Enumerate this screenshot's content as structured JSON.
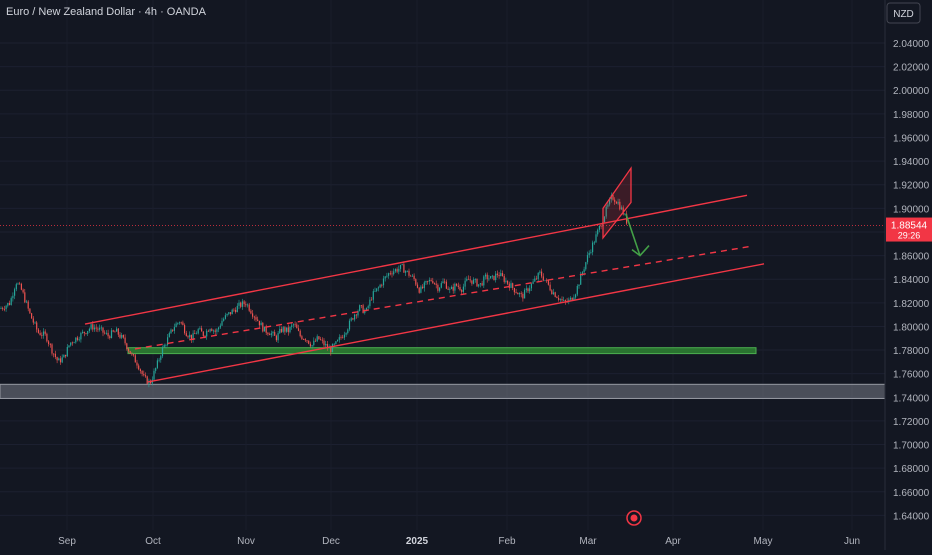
{
  "header": {
    "title": "Euro / New Zealand Dollar · 4h · OANDA",
    "currency_button": "NZD"
  },
  "price_label": {
    "price": "1.88544",
    "countdown": "29:26"
  },
  "chart_data": {
    "type": "candlestick",
    "title": "Euro / New Zealand Dollar · 4h · OANDA",
    "y_axis_ticks": [
      "2.04000",
      "2.02000",
      "2.00000",
      "1.98000",
      "1.96000",
      "1.94000",
      "1.92000",
      "1.90000",
      "1.88000",
      "1.86000",
      "1.84000",
      "1.82000",
      "1.80000",
      "1.78000",
      "1.76000",
      "1.74000",
      "1.72000",
      "1.70000",
      "1.68000",
      "1.66000",
      "1.64000"
    ],
    "x_axis_ticks": [
      "Sep",
      "Oct",
      "Nov",
      "Dec",
      "2025",
      "Feb",
      "Mar",
      "Apr",
      "May",
      "Jun"
    ],
    "ylim": [
      1.63,
      2.055
    ],
    "current_price": 1.88544,
    "price_path": [
      [
        0,
        1.815
      ],
      [
        10,
        1.82
      ],
      [
        16,
        1.838
      ],
      [
        22,
        1.83
      ],
      [
        30,
        1.81
      ],
      [
        38,
        1.795
      ],
      [
        46,
        1.792
      ],
      [
        52,
        1.78
      ],
      [
        58,
        1.77
      ],
      [
        64,
        1.774
      ],
      [
        70,
        1.786
      ],
      [
        76,
        1.79
      ],
      [
        84,
        1.795
      ],
      [
        92,
        1.8
      ],
      [
        100,
        1.797
      ],
      [
        108,
        1.792
      ],
      [
        116,
        1.796
      ],
      [
        124,
        1.788
      ],
      [
        132,
        1.775
      ],
      [
        138,
        1.768
      ],
      [
        144,
        1.756
      ],
      [
        150,
        1.752
      ],
      [
        156,
        1.765
      ],
      [
        162,
        1.78
      ],
      [
        168,
        1.79
      ],
      [
        174,
        1.8
      ],
      [
        180,
        1.805
      ],
      [
        186,
        1.795
      ],
      [
        192,
        1.79
      ],
      [
        198,
        1.797
      ],
      [
        204,
        1.793
      ],
      [
        210,
        1.8
      ],
      [
        216,
        1.795
      ],
      [
        222,
        1.805
      ],
      [
        228,
        1.81
      ],
      [
        234,
        1.814
      ],
      [
        240,
        1.818
      ],
      [
        246,
        1.82
      ],
      [
        252,
        1.812
      ],
      [
        258,
        1.805
      ],
      [
        264,
        1.797
      ],
      [
        270,
        1.795
      ],
      [
        276,
        1.79
      ],
      [
        282,
        1.798
      ],
      [
        288,
        1.796
      ],
      [
        294,
        1.802
      ],
      [
        300,
        1.792
      ],
      [
        306,
        1.79
      ],
      [
        312,
        1.784
      ],
      [
        318,
        1.79
      ],
      [
        324,
        1.785
      ],
      [
        330,
        1.78
      ],
      [
        336,
        1.785
      ],
      [
        342,
        1.792
      ],
      [
        348,
        1.8
      ],
      [
        354,
        1.81
      ],
      [
        360,
        1.816
      ],
      [
        366,
        1.812
      ],
      [
        372,
        1.826
      ],
      [
        378,
        1.832
      ],
      [
        384,
        1.84
      ],
      [
        390,
        1.846
      ],
      [
        396,
        1.848
      ],
      [
        402,
        1.85
      ],
      [
        408,
        1.845
      ],
      [
        414,
        1.84
      ],
      [
        420,
        1.83
      ],
      [
        426,
        1.836
      ],
      [
        432,
        1.84
      ],
      [
        438,
        1.833
      ],
      [
        444,
        1.838
      ],
      [
        450,
        1.83
      ],
      [
        456,
        1.835
      ],
      [
        462,
        1.832
      ],
      [
        468,
        1.84
      ],
      [
        474,
        1.838
      ],
      [
        480,
        1.835
      ],
      [
        486,
        1.842
      ],
      [
        492,
        1.84
      ],
      [
        498,
        1.845
      ],
      [
        504,
        1.84
      ],
      [
        510,
        1.835
      ],
      [
        516,
        1.83
      ],
      [
        522,
        1.825
      ],
      [
        528,
        1.832
      ],
      [
        534,
        1.838
      ],
      [
        540,
        1.845
      ],
      [
        546,
        1.838
      ],
      [
        552,
        1.83
      ],
      [
        558,
        1.825
      ],
      [
        564,
        1.82
      ],
      [
        570,
        1.822
      ],
      [
        576,
        1.83
      ],
      [
        582,
        1.845
      ],
      [
        588,
        1.86
      ],
      [
        594,
        1.872
      ],
      [
        600,
        1.885
      ],
      [
        606,
        1.898
      ],
      [
        612,
        1.91
      ],
      [
        618,
        1.905
      ],
      [
        624,
        1.895
      ],
      [
        628,
        1.886
      ]
    ],
    "annotations": {
      "upper_channel_line": [
        [
          85,
          1.802
        ],
        [
          747,
          1.911
        ]
      ],
      "mid_channel_line": [
        [
          135,
          1.781
        ],
        [
          752,
          1.868
        ]
      ],
      "lower_channel_line": [
        [
          148,
          1.753
        ],
        [
          764,
          1.853
        ]
      ],
      "flag_box": [
        [
          603,
          1.9
        ],
        [
          631,
          1.934
        ],
        [
          631,
          1.905
        ],
        [
          603,
          1.875
        ]
      ],
      "green_support_zone": [
        1.777,
        1.782
      ],
      "grey_support_zone": [
        1.739,
        1.751
      ],
      "projection_arrow": [
        [
          626,
          1.895
        ],
        [
          640,
          1.86
        ]
      ]
    }
  }
}
